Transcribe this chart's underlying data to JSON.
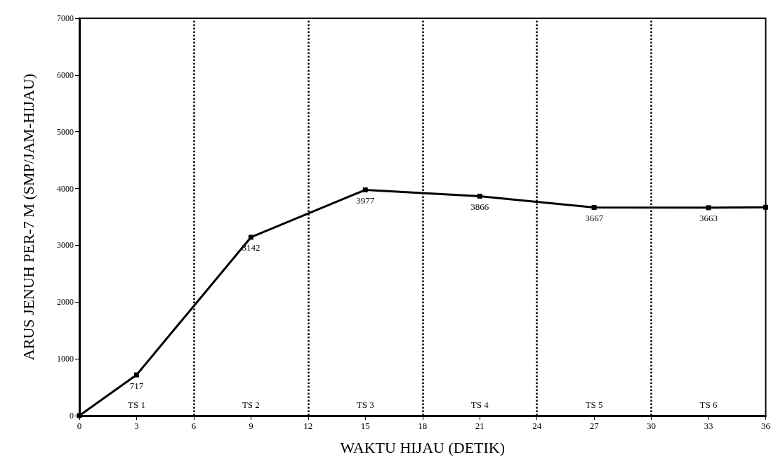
{
  "chart_data": {
    "type": "line",
    "xlabel": "WAKTU HIJAU (DETIK)",
    "ylabel": "ARUS JENUH PER-7 M (SMP/JAM-HIJAU)",
    "x": [
      0,
      3,
      9,
      15,
      21,
      27,
      33,
      36
    ],
    "series": [
      {
        "color": "#000000",
        "values": [
          0,
          717,
          3142,
          3977,
          3866,
          3667,
          3663,
          3670
        ],
        "value_labels": [
          null,
          "717",
          "3142",
          "3977",
          "3866",
          "3667",
          "3663",
          null
        ]
      }
    ],
    "xlim": [
      0,
      36
    ],
    "xticks": [
      0,
      3,
      6,
      9,
      12,
      15,
      18,
      21,
      24,
      27,
      30,
      33,
      36
    ],
    "ylim": [
      0,
      7000
    ],
    "yticks": [
      0,
      1000,
      2000,
      3000,
      4000,
      5000,
      6000,
      7000
    ],
    "ref_lines": [
      {
        "axis": "x",
        "value": 6,
        "line_style": "dotted",
        "color": "#000000"
      },
      {
        "axis": "x",
        "value": 12,
        "line_style": "dotted",
        "color": "#000000"
      },
      {
        "axis": "x",
        "value": 18,
        "line_style": "dotted",
        "color": "#000000"
      },
      {
        "axis": "x",
        "value": 24,
        "line_style": "dotted",
        "color": "#000000"
      },
      {
        "axis": "x",
        "value": 30,
        "line_style": "dotted",
        "color": "#000000"
      }
    ],
    "annotations": [
      "TS 1",
      "TS 2",
      "TS 3",
      "TS 4",
      "TS 5",
      "TS 6"
    ],
    "grid": false,
    "marker": "square",
    "line_style": "solid"
  }
}
